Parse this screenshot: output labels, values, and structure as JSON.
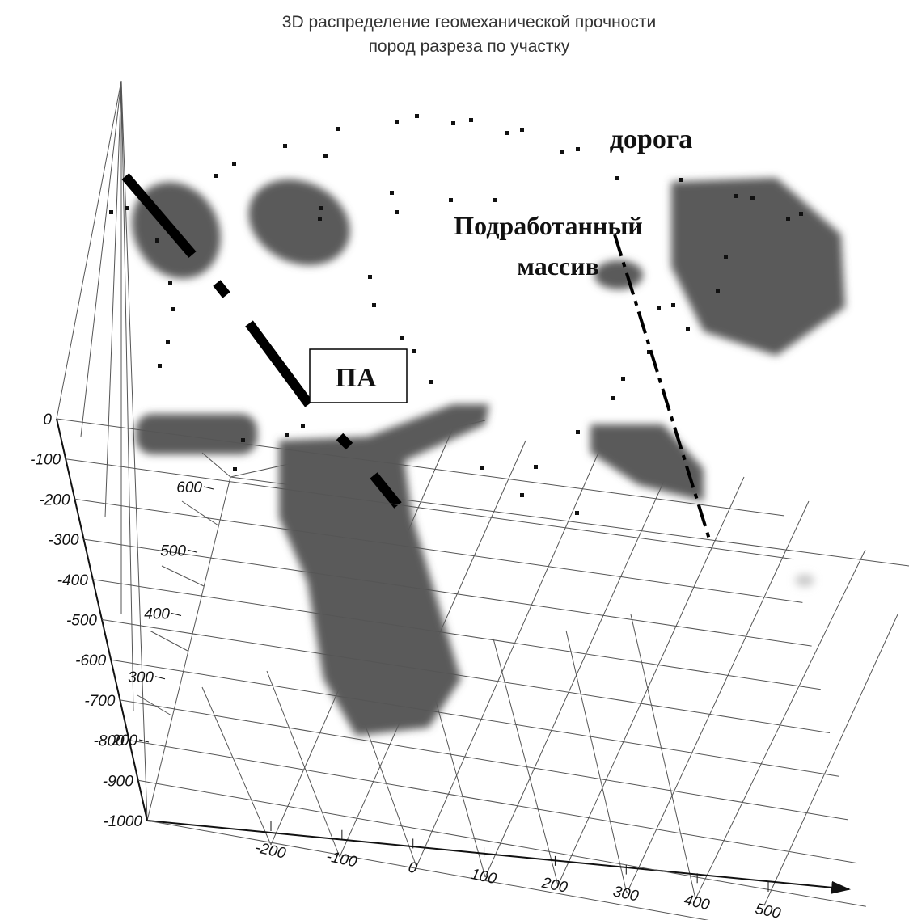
{
  "chart_data": {
    "type": "volume3d",
    "title": [
      "3D распределение геомеханической прочности",
      "пород разреза по участку"
    ],
    "zlim": [
      -1000,
      0
    ],
    "zticks": [
      0,
      -100,
      -200,
      -300,
      -400,
      -500,
      -600,
      -700,
      -800,
      -900,
      -1000
    ],
    "ylim": [
      200,
      600
    ],
    "yticks": [
      600,
      500,
      400,
      300,
      200
    ],
    "xlim": [
      -200,
      500
    ],
    "xticks": [
      -200,
      -100,
      0,
      100,
      200,
      300,
      400,
      500
    ],
    "grid": true,
    "annotations": [
      "дорога",
      "Подработанный",
      "массив",
      "ПА"
    ]
  }
}
